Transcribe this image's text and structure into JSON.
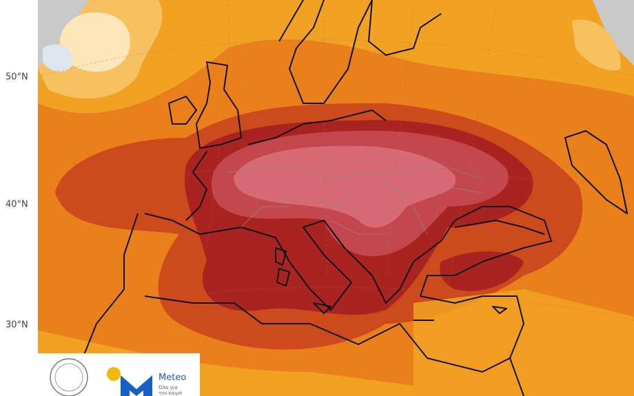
{
  "map": {
    "lat_labels": [
      "50°N",
      "40°N",
      "30°N"
    ]
  },
  "logo": {
    "name": "Meteo",
    "tagline": [
      "Όλα για",
      "τον καιρό"
    ]
  }
}
